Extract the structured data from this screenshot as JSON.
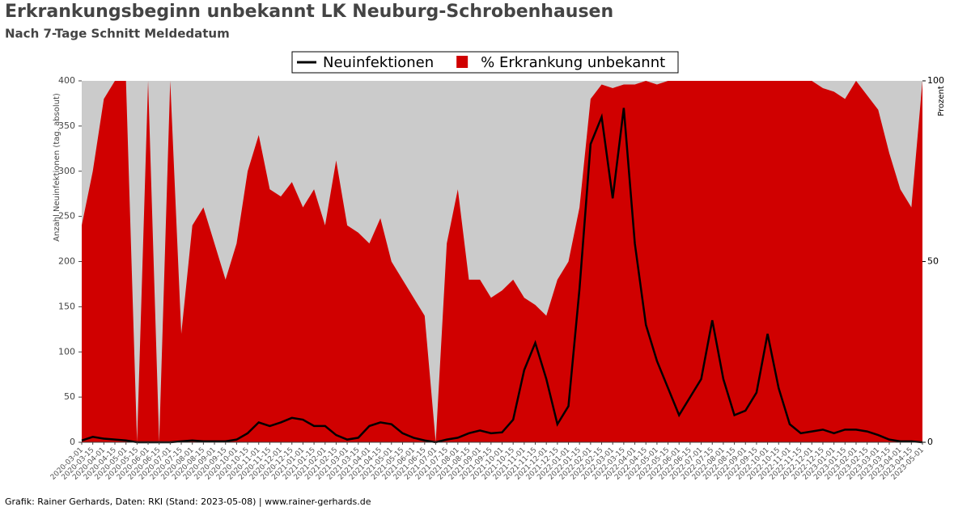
{
  "chart_data": {
    "type": "line-area",
    "title": "Erkrankungsbeginn unbekannt LK Neuburg-Schrobenhausen",
    "subtitle": "Nach 7-Tage Schnitt Meldedatum",
    "ylabel": "Anzahl Neuinfektionen (tag. absolut)",
    "y2label": "Prozent",
    "footer": "Grafik: Rainer Gerhards, Daten: RKI (Stand: 2023-05-08) | www.rainer-gerhards.de",
    "legend": "top",
    "x": [
      "2020-03-01",
      "2020-03-15",
      "2020-04-01",
      "2020-04-15",
      "2020-05-01",
      "2020-05-15",
      "2020-06-01",
      "2020-06-15",
      "2020-07-01",
      "2020-07-15",
      "2020-08-01",
      "2020-08-15",
      "2020-09-01",
      "2020-09-15",
      "2020-10-01",
      "2020-10-15",
      "2020-11-01",
      "2020-11-15",
      "2020-12-01",
      "2020-12-15",
      "2021-01-01",
      "2021-01-15",
      "2021-02-01",
      "2021-02-15",
      "2021-03-01",
      "2021-03-15",
      "2021-04-01",
      "2021-04-15",
      "2021-05-01",
      "2021-05-15",
      "2021-06-01",
      "2021-06-15",
      "2021-07-01",
      "2021-07-15",
      "2021-08-01",
      "2021-08-15",
      "2021-09-01",
      "2021-09-15",
      "2021-10-01",
      "2021-10-15",
      "2021-11-01",
      "2021-11-15",
      "2021-12-01",
      "2021-12-15",
      "2022-01-01",
      "2022-01-15",
      "2022-02-01",
      "2022-02-15",
      "2022-03-01",
      "2022-03-15",
      "2022-04-01",
      "2022-04-15",
      "2022-05-01",
      "2022-05-15",
      "2022-06-01",
      "2022-06-15",
      "2022-07-01",
      "2022-07-15",
      "2022-08-01",
      "2022-08-15",
      "2022-09-01",
      "2022-09-15",
      "2022-10-01",
      "2022-10-15",
      "2022-11-01",
      "2022-11-15",
      "2022-12-01",
      "2022-12-15",
      "2023-01-01",
      "2023-01-15",
      "2023-02-01",
      "2023-02-15",
      "2023-03-01",
      "2023-03-15",
      "2023-04-01",
      "2023-04-15",
      "2023-05-01"
    ],
    "series": [
      {
        "name": "% Erkrankung unbekannt",
        "color": "#d00000",
        "axis": "y2",
        "kind": "area",
        "values": [
          60,
          75,
          95,
          100,
          100,
          0,
          100,
          0,
          100,
          30,
          60,
          65,
          55,
          45,
          55,
          75,
          85,
          70,
          68,
          72,
          65,
          70,
          60,
          78,
          60,
          58,
          55,
          62,
          50,
          45,
          40,
          35,
          0,
          55,
          70,
          45,
          45,
          40,
          42,
          45,
          40,
          38,
          35,
          45,
          50,
          65,
          95,
          99,
          98,
          99,
          99,
          100,
          99,
          100,
          100,
          100,
          100,
          100,
          100,
          100,
          100,
          100,
          100,
          100,
          100,
          100,
          100,
          98,
          97,
          95,
          100,
          96,
          92,
          80,
          70,
          65,
          100
        ]
      },
      {
        "name": "Neuinfektionen",
        "color": "#000000",
        "axis": "y",
        "kind": "line",
        "values": [
          2,
          6,
          4,
          3,
          2,
          0,
          0,
          0,
          0,
          1,
          2,
          1,
          1,
          1,
          3,
          10,
          22,
          18,
          22,
          27,
          25,
          18,
          18,
          8,
          3,
          5,
          18,
          22,
          20,
          10,
          5,
          2,
          0,
          3,
          5,
          10,
          13,
          10,
          11,
          25,
          80,
          110,
          70,
          20,
          40,
          170,
          330,
          360,
          270,
          370,
          220,
          130,
          90,
          60,
          30,
          50,
          70,
          135,
          70,
          30,
          35,
          55,
          120,
          60,
          20,
          10,
          12,
          14,
          10,
          14,
          14,
          12,
          8,
          3,
          1,
          1,
          0
        ]
      }
    ],
    "ylim": [
      0,
      400
    ],
    "yticks": [
      0,
      50,
      100,
      150,
      200,
      250,
      300,
      350,
      400
    ],
    "y2lim": [
      0,
      100
    ],
    "y2ticks": [
      0,
      50,
      100
    ]
  }
}
